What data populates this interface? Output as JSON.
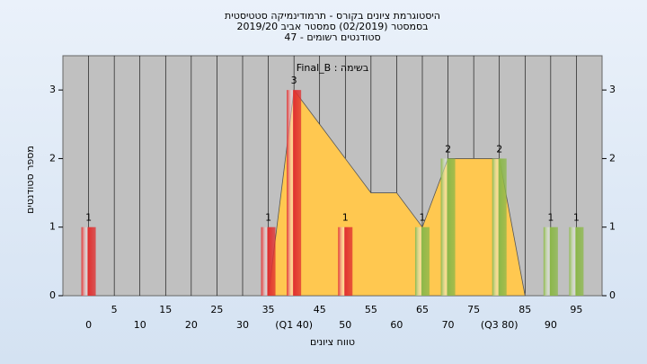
{
  "chart_data": {
    "type": "bar",
    "title_lines": [
      "היסטוגרמת ציונים בקורס - תרמודינמיקה סטטיסטית",
      "בסמסטר  (02/2019)  סמסטר אביב 2019/20",
      "סטודנטים רשומים - 47"
    ],
    "annotation": "Final_B : בשימה",
    "y_label": "מספר סטודנטים",
    "x_label": "טווח ציונים",
    "x": [
      0,
      5,
      10,
      15,
      20,
      25,
      30,
      35,
      40,
      45,
      50,
      55,
      60,
      65,
      70,
      75,
      80,
      85,
      90,
      95
    ],
    "xlim": [
      -5,
      100
    ],
    "xticks": [
      0,
      5,
      10,
      15,
      20,
      25,
      30,
      35,
      {
        "value": 40,
        "label": "(Q1 40)"
      },
      45,
      50,
      55,
      60,
      65,
      70,
      75,
      {
        "value": 80,
        "label": "(Q3 80)"
      },
      85,
      90,
      95
    ],
    "ylim": [
      0,
      3.5
    ],
    "yticks": [
      0,
      1,
      2,
      3
    ],
    "grid": true,
    "series": [
      {
        "type": "area",
        "color": "#ffc850",
        "values": [
          null,
          null,
          null,
          null,
          null,
          null,
          null,
          0,
          3,
          2.5,
          2,
          1.5,
          1.5,
          1,
          2,
          2,
          2,
          0,
          null,
          null
        ]
      },
      {
        "type": "bar",
        "values": [
          1,
          0,
          0,
          0,
          0,
          0,
          0,
          1,
          3,
          0,
          1,
          0,
          0,
          1,
          2,
          0,
          2,
          0,
          1,
          1
        ],
        "colors": [
          "#e03030",
          "#e03030",
          "#e03030",
          "#e03030",
          "#e03030",
          "#e03030",
          "#e03030",
          "#e03030",
          "#e03030",
          "#e03030",
          "#e03030",
          "#e03030",
          "#e03030",
          "#8cb84a",
          "#8cb84a",
          "#8cb84a",
          "#8cb84a",
          "#8cb84a",
          "#8cb84a",
          "#8cb84a"
        ]
      }
    ]
  }
}
